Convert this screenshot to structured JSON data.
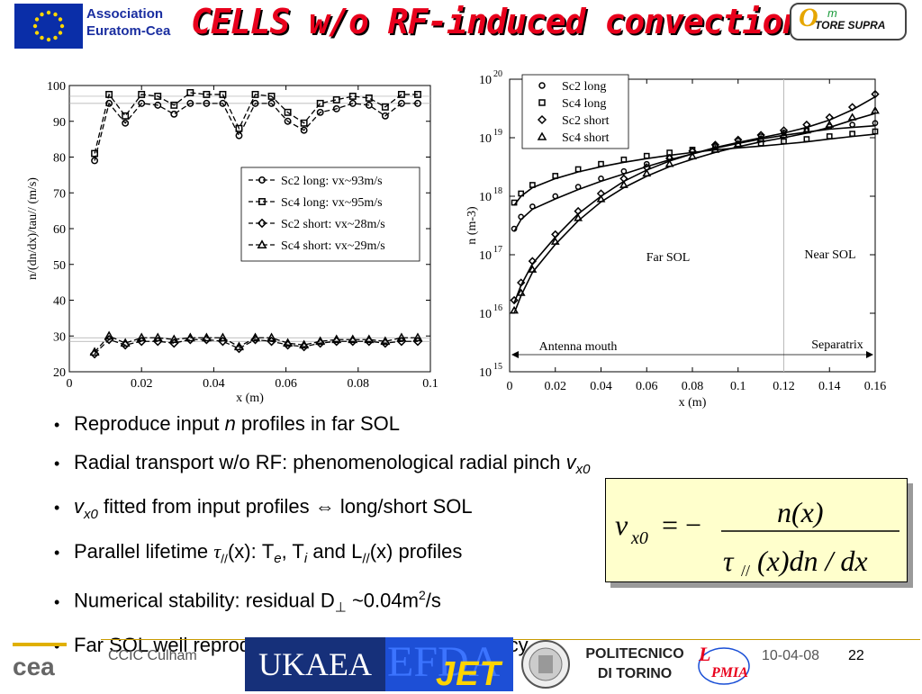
{
  "header": {
    "association_line1": "Association",
    "association_line2": "Euratom-Cea",
    "title": "CELLS w/o RF-induced convection",
    "tore_supra_logo": "TORE SUPRA",
    "logos": [
      "eu-flag-icon",
      "tore-supra-logo"
    ]
  },
  "chart_data": [
    {
      "type": "line",
      "xlabel": "x (m)",
      "ylabel": "n/(dn/dx)/tau// (m/s)",
      "xlim": [
        0,
        0.1
      ],
      "ylim": [
        20,
        100
      ],
      "xticks": [
        "0",
        "0.02",
        "0.04",
        "0.06",
        "0.08",
        "0.1"
      ],
      "yticks": [
        "20",
        "30",
        "40",
        "50",
        "60",
        "70",
        "80",
        "90",
        "100"
      ],
      "legend_position": "upper-right",
      "x": [
        0.007,
        0.011,
        0.0155,
        0.02,
        0.0245,
        0.029,
        0.0335,
        0.038,
        0.0425,
        0.047,
        0.0515,
        0.056,
        0.0605,
        0.065,
        0.0695,
        0.074,
        0.0785,
        0.083,
        0.0875,
        0.092,
        0.0965
      ],
      "series": [
        {
          "name": "Sc2 long: vx~93m/s",
          "marker": "circle",
          "values": [
            79,
            95,
            89.5,
            95,
            94.5,
            92,
            95,
            95,
            95,
            86,
            95,
            95,
            90,
            87.5,
            92.5,
            93.5,
            95,
            94.5,
            91.5,
            95,
            95
          ]
        },
        {
          "name": "Sc4 long: vx~95m/s",
          "marker": "square",
          "values": [
            81,
            97.5,
            91.5,
            97.5,
            97,
            94.5,
            98,
            97.5,
            97.5,
            88,
            97.5,
            97,
            92.5,
            89.5,
            95,
            96,
            97,
            96.5,
            94,
            97.5,
            97.5
          ]
        },
        {
          "name": "Sc2 short: vx~28m/s",
          "marker": "diamond",
          "values": [
            25,
            29,
            27.5,
            28.5,
            28.5,
            28,
            29,
            29,
            28.5,
            26.5,
            29,
            28.5,
            27.5,
            27,
            28,
            28.5,
            28.5,
            28.5,
            28,
            28.5,
            28.5
          ]
        },
        {
          "name": "Sc4 short: vx~29m/s",
          "marker": "triangle",
          "values": [
            25.5,
            30,
            28,
            29.5,
            29.5,
            29,
            29.5,
            29.5,
            29.5,
            27,
            29.5,
            29.5,
            28,
            27.5,
            28.5,
            29,
            29,
            29,
            28.5,
            29.5,
            29.5
          ]
        }
      ]
    },
    {
      "type": "line",
      "xlabel": "x (m)",
      "ylabel": "n (m-3)",
      "scale_y": "log",
      "xlim": [
        0,
        0.16
      ],
      "ylim": [
        1000000000000000.0,
        1e+20
      ],
      "xticks": [
        "0",
        "0.02",
        "0.04",
        "0.06",
        "0.08",
        "0.1",
        "0.12",
        "0.14",
        "0.16"
      ],
      "yticks_exponents": [
        "15",
        "16",
        "17",
        "18",
        "19",
        "20"
      ],
      "ytick_base": "10",
      "legend_position": "top",
      "legend": [
        {
          "name": "Sc2 long",
          "marker": "circle"
        },
        {
          "name": "Sc4 long",
          "marker": "square"
        },
        {
          "name": "Sc2 short",
          "marker": "diamond"
        },
        {
          "name": "Sc4 short",
          "marker": "triangle"
        }
      ],
      "x": [
        0.002,
        0.005,
        0.01,
        0.02,
        0.03,
        0.04,
        0.05,
        0.06,
        0.07,
        0.08,
        0.09,
        0.1,
        0.11,
        0.12,
        0.13,
        0.14,
        0.15,
        0.16
      ],
      "series": [
        {
          "marker": "circle",
          "values": [
            2.5e+17,
            4e+17,
            6e+17,
            9e+17,
            1.3e+18,
            1.8e+18,
            2.4e+18,
            3.2e+18,
            4.2e+18,
            5.3e+18,
            6.6e+18,
            8e+18,
            9.5e+18,
            1.1e+19,
            1.25e+19,
            1.4e+19,
            1.5e+19,
            1.6e+19
          ]
        },
        {
          "marker": "square",
          "values": [
            7e+17,
            1e+18,
            1.4e+18,
            2e+18,
            2.6e+18,
            3.2e+18,
            3.8e+18,
            4.4e+18,
            5e+18,
            5.6e+18,
            6.2e+18,
            6.7e+18,
            7.2e+18,
            7.8e+18,
            8.5e+18,
            9.5e+18,
            1.05e+19,
            1.15e+19
          ]
        },
        {
          "marker": "diamond",
          "values": [
            1.5e+16,
            3e+16,
            7e+16,
            2e+17,
            5e+17,
            1e+18,
            1.8e+18,
            2.8e+18,
            4e+18,
            5.3e+18,
            6.8e+18,
            8.3e+18,
            1e+19,
            1.2e+19,
            1.5e+19,
            2e+19,
            3e+19,
            5e+19
          ]
        },
        {
          "marker": "triangle",
          "values": [
            1e+16,
            2e+16,
            5e+16,
            1.5e+17,
            3.8e+17,
            8e+17,
            1.4e+18,
            2.2e+18,
            3.2e+18,
            4.3e+18,
            5.6e+18,
            7e+18,
            8.5e+18,
            1e+19,
            1.2e+19,
            1.5e+19,
            2e+19,
            2.6e+19
          ]
        }
      ],
      "annotations": {
        "far_sol": "Far SOL",
        "near_sol": "Near SOL",
        "antenna_mouth": "Antenna mouth",
        "separatrix": "Separatrix"
      },
      "separatrix_x": 0.12
    }
  ],
  "bullets": [
    {
      "prefix": "Reproduce input ",
      "italic": "n",
      "suffix": " profiles in far SOL"
    },
    {
      "text": "Radial transport w/o RF: phenomenological radial pinch ",
      "var": "v",
      "sub": "x0"
    },
    {
      "var": "v",
      "sub": "x0",
      "suffix": " fitted from input profiles ⇔ long/short SOL"
    },
    {
      "prefix": "Parallel lifetime ",
      "tau": "τ",
      "tau_sub": "//",
      "mid": "(x): T",
      "sub1": "e",
      "mid2": ", T",
      "sub2": "i",
      "mid3": " and L",
      "sub3": "//",
      "suffix": "(x) profiles"
    },
    {
      "prefix": "Numerical stability: residual D",
      "sub": "⊥",
      "suffix": " ~0.04m",
      "sup": "2",
      "end": "/s"
    },
    {
      "text": "Far SOL well reproduced; near SOL => discrepancy"
    }
  ],
  "formula": {
    "lhs": "v",
    "lhs_sub": "x0",
    "equals": "= −",
    "numerator": "n(x)",
    "denominator_tau": "τ",
    "denominator_sub": "//",
    "denominator_rest": "(x)dn / dx"
  },
  "footer": {
    "conference": "CCIC Culham",
    "ukaea": "UKAEA",
    "efda": "EFDA",
    "jet": "JET",
    "politecnico_line1": "POLITECNICO",
    "politecnico_line2": "DI TORINO",
    "date": "10-04-08",
    "page": "22",
    "logos": [
      "cea-logo",
      "ukaea-logo",
      "efda-jet-logo",
      "torino-seal-logo",
      "politecnico-logo",
      "pmia-logo"
    ]
  }
}
